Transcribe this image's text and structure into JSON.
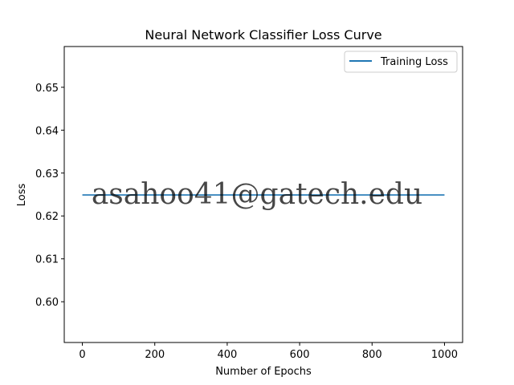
{
  "chart_data": {
    "type": "line",
    "title": "Neural Network Classifier Loss Curve",
    "xlabel": "Number of Epochs",
    "ylabel": "Loss",
    "xlim": [
      -50,
      1050
    ],
    "ylim": [
      0.5905,
      0.6595
    ],
    "xticks": [
      0,
      200,
      400,
      600,
      800,
      1000
    ],
    "yticks": [
      0.6,
      0.61,
      0.62,
      0.63,
      0.64,
      0.65
    ],
    "grid": false,
    "legend": {
      "location": "upper right"
    },
    "series": [
      {
        "name": "Training Loss",
        "color": "#1f77b4",
        "x": [
          0,
          1000
        ],
        "y": [
          0.6249,
          0.6249
        ]
      }
    ]
  },
  "watermark": {
    "text": "asahoo41@gatech.edu",
    "color": "#ff0000"
  }
}
